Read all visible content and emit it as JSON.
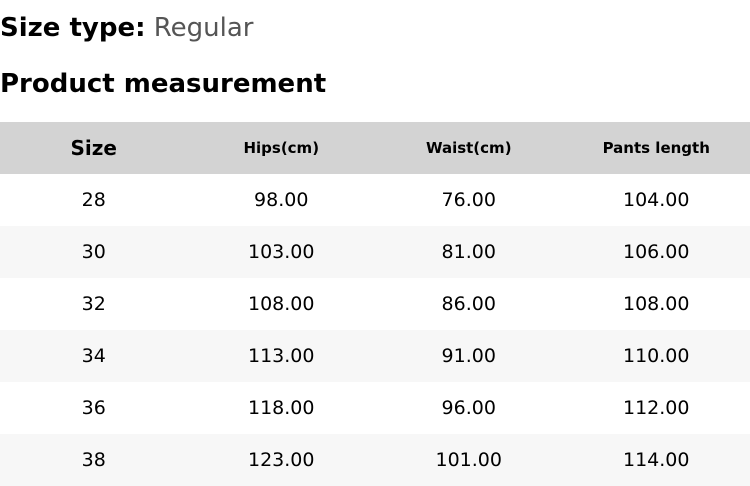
{
  "size_type": {
    "label": "Size type:",
    "value": "Regular"
  },
  "section_title": "Product measurement",
  "table": {
    "headers": [
      "Size",
      "Hips(cm)",
      "Waist(cm)",
      "Pants length"
    ],
    "rows": [
      [
        "28",
        "98.00",
        "76.00",
        "104.00"
      ],
      [
        "30",
        "103.00",
        "81.00",
        "106.00"
      ],
      [
        "32",
        "108.00",
        "86.00",
        "108.00"
      ],
      [
        "34",
        "113.00",
        "91.00",
        "110.00"
      ],
      [
        "36",
        "118.00",
        "96.00",
        "112.00"
      ],
      [
        "38",
        "123.00",
        "101.00",
        "114.00"
      ]
    ]
  }
}
